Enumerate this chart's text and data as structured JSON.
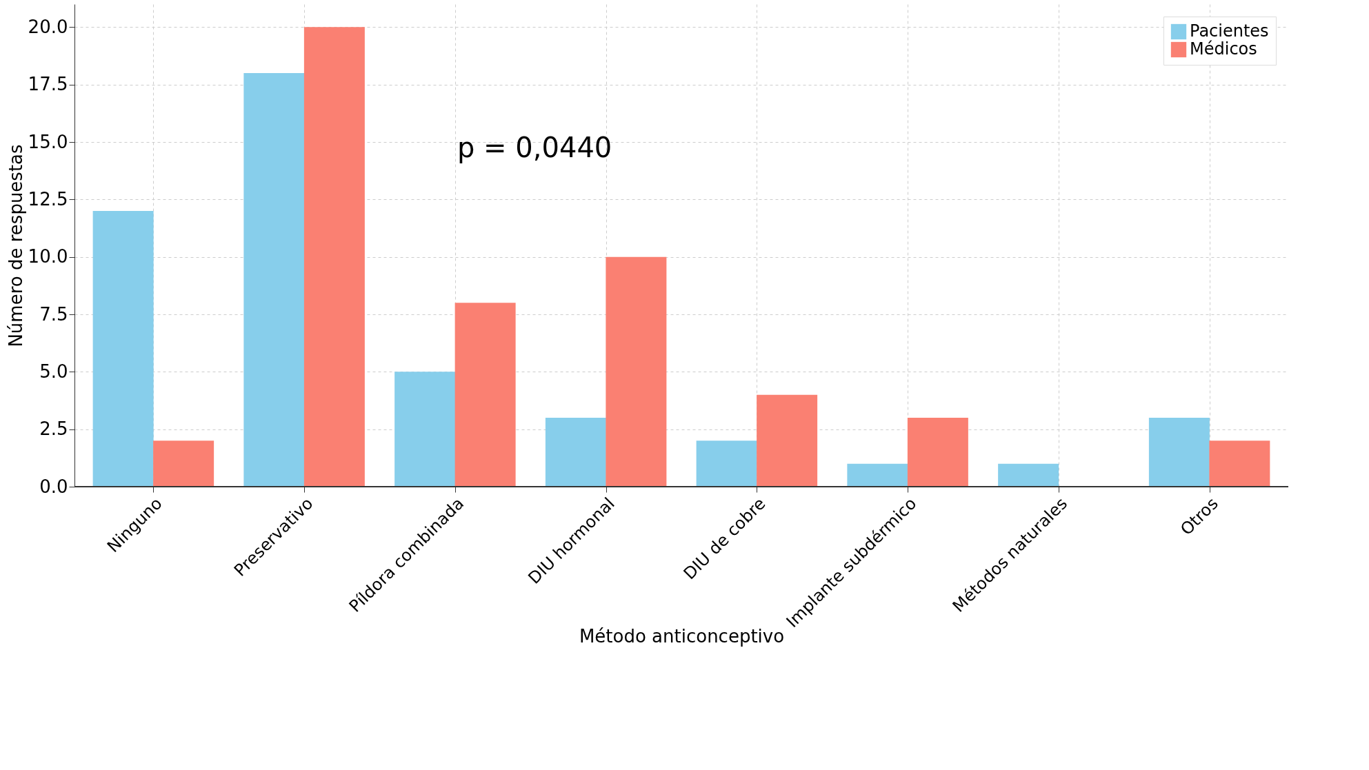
{
  "chart_data": {
    "type": "bar",
    "xlabel": "Método anticonceptivo",
    "ylabel": "Número de respuestas",
    "categories": [
      "Ninguno",
      "Preservativo",
      "Píldora combinada",
      "DIU hormonal",
      "DIU de cobre",
      "Implante subdérmico",
      "Métodos naturales",
      "Otros"
    ],
    "series": [
      {
        "name": "Pacientes",
        "color": "#87ceeb",
        "values": [
          12,
          18,
          5,
          3,
          2,
          1,
          1,
          3
        ]
      },
      {
        "name": "Médicos",
        "color": "#fa8072",
        "values": [
          2,
          20,
          8,
          10,
          4,
          3,
          0,
          2
        ]
      }
    ],
    "ylim": [
      0,
      21
    ],
    "yticks": [
      {
        "value": 0,
        "label": "0.0"
      },
      {
        "value": 2.5,
        "label": "2.5"
      },
      {
        "value": 5,
        "label": "5.0"
      },
      {
        "value": 7.5,
        "label": "7.5"
      },
      {
        "value": 10,
        "label": "10.0"
      },
      {
        "value": 12.5,
        "label": "12.5"
      },
      {
        "value": 15,
        "label": "15.0"
      },
      {
        "value": 17.5,
        "label": "17.5"
      },
      {
        "value": 20,
        "label": "20.0"
      }
    ],
    "annotations": [
      "p = 0,0440"
    ],
    "grid": true,
    "legend": "top right"
  }
}
